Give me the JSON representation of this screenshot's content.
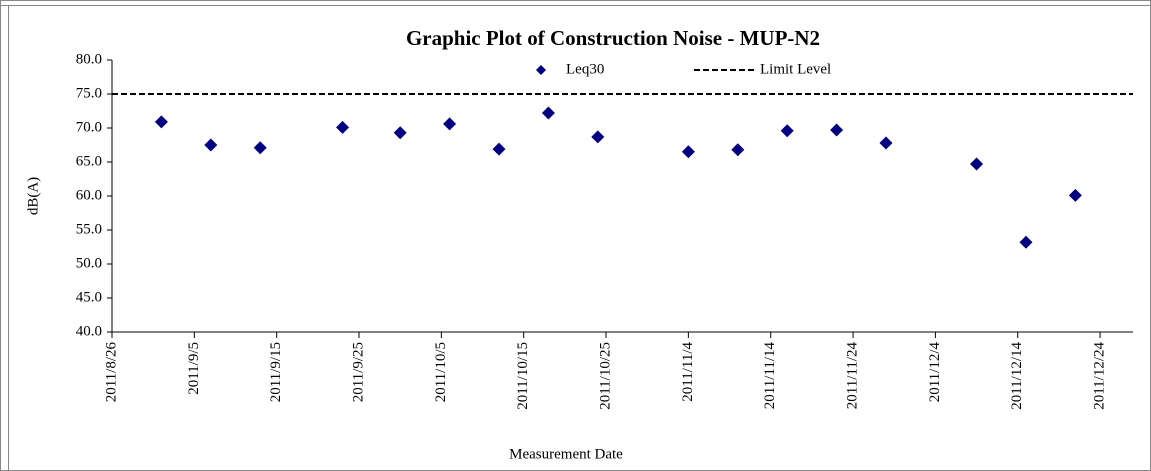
{
  "chart_data": {
    "type": "scatter",
    "title": "Graphic Plot of Construction Noise - MUP-N2",
    "x_label": "Measurement Date",
    "y_label": "dB(A)",
    "x": [
      "2011/9/1",
      "2011/9/7",
      "2011/9/13",
      "2011/9/23",
      "2011/9/30",
      "2011/10/6",
      "2011/10/12",
      "2011/10/18",
      "2011/10/24",
      "2011/11/4",
      "2011/11/10",
      "2011/11/16",
      "2011/11/22",
      "2011/11/28",
      "2011/12/9",
      "2011/12/15",
      "2011/12/21"
    ],
    "series": [
      {
        "name": "Leq30",
        "color": "#000080",
        "values": [
          70.9,
          67.5,
          67.1,
          70.1,
          69.3,
          70.6,
          66.9,
          72.2,
          68.7,
          66.5,
          66.8,
          69.6,
          69.7,
          67.8,
          64.7,
          53.2,
          60.1
        ]
      }
    ],
    "limit": {
      "name": "Limit Level",
      "value": 75,
      "color": "#000000"
    },
    "xlim": [
      "2011/8/26",
      "2011/12/28"
    ],
    "xticks": [
      "2011/8/26",
      "2011/9/5",
      "2011/9/15",
      "2011/9/25",
      "2011/10/5",
      "2011/10/15",
      "2011/10/25",
      "2011/11/4",
      "2011/11/14",
      "2011/11/24",
      "2011/12/4",
      "2011/12/14",
      "2011/12/24"
    ],
    "ylim": [
      40,
      80
    ],
    "yticks": [
      {
        "value": 40,
        "label": "40.0"
      },
      {
        "value": 45,
        "label": "45.0"
      },
      {
        "value": 50,
        "label": "50.0"
      },
      {
        "value": 55,
        "label": "55.0"
      },
      {
        "value": 60,
        "label": "60.0"
      },
      {
        "value": 65,
        "label": "65.0"
      },
      {
        "value": 70,
        "label": "70.0"
      },
      {
        "value": 75,
        "label": "75.0"
      },
      {
        "value": 80,
        "label": "80.0"
      }
    ],
    "grid": false
  }
}
